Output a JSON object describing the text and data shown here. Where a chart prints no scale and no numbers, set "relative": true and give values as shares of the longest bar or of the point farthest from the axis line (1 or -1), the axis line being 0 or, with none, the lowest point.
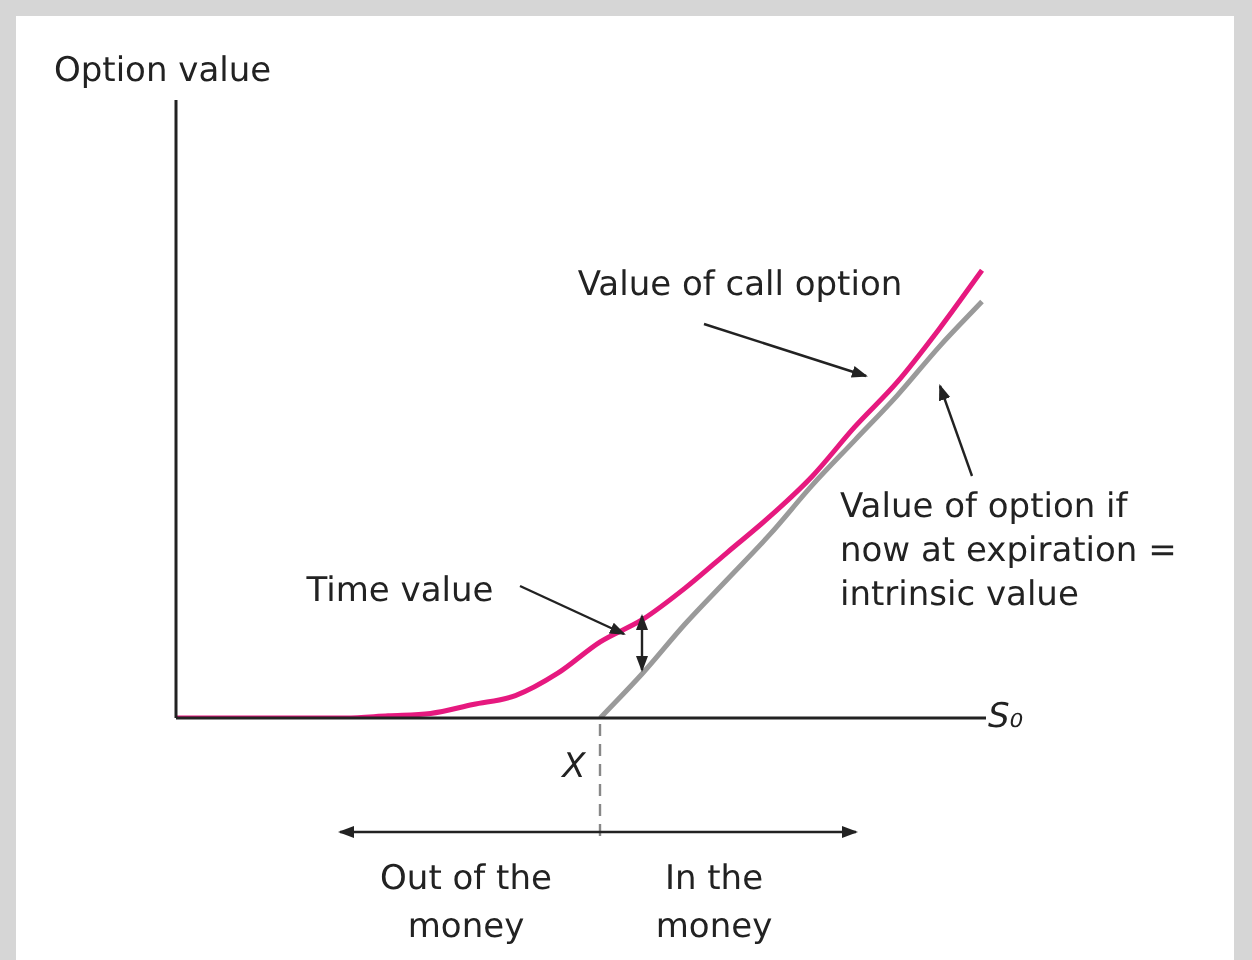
{
  "chart_data": {
    "type": "line",
    "relative": true,
    "xlabel": "S₀",
    "marker": "none",
    "line_style": "solid",
    "categories": [
      null,
      null,
      null,
      null,
      null,
      null,
      null,
      null,
      null,
      null,
      null,
      null,
      null,
      null,
      null,
      null,
      null,
      null,
      null,
      null
    ],
    "series": [
      {
        "name": "Value of call option",
        "color": "#e6197f",
        "values": [
          0,
          0,
          0,
          0,
          0,
          0.005,
          0.01,
          0.03,
          0.05,
          0.1,
          0.17,
          0.22,
          0.29,
          0.37,
          0.45,
          0.54,
          0.65,
          0.75,
          0.87,
          1
        ]
      },
      {
        "name": "Value of option if now at expiration = intrinsic value",
        "color": "#9a9a9a",
        "values": [
          null,
          null,
          null,
          null,
          null,
          null,
          null,
          null,
          null,
          null,
          0,
          0.1,
          0.21,
          0.31,
          0.41,
          0.52,
          0.62,
          0.72,
          0.83,
          0.93
        ]
      }
    ],
    "annotations": [
      "Option value",
      "Time value",
      "X",
      "Out of the money",
      "In the money"
    ]
  }
}
